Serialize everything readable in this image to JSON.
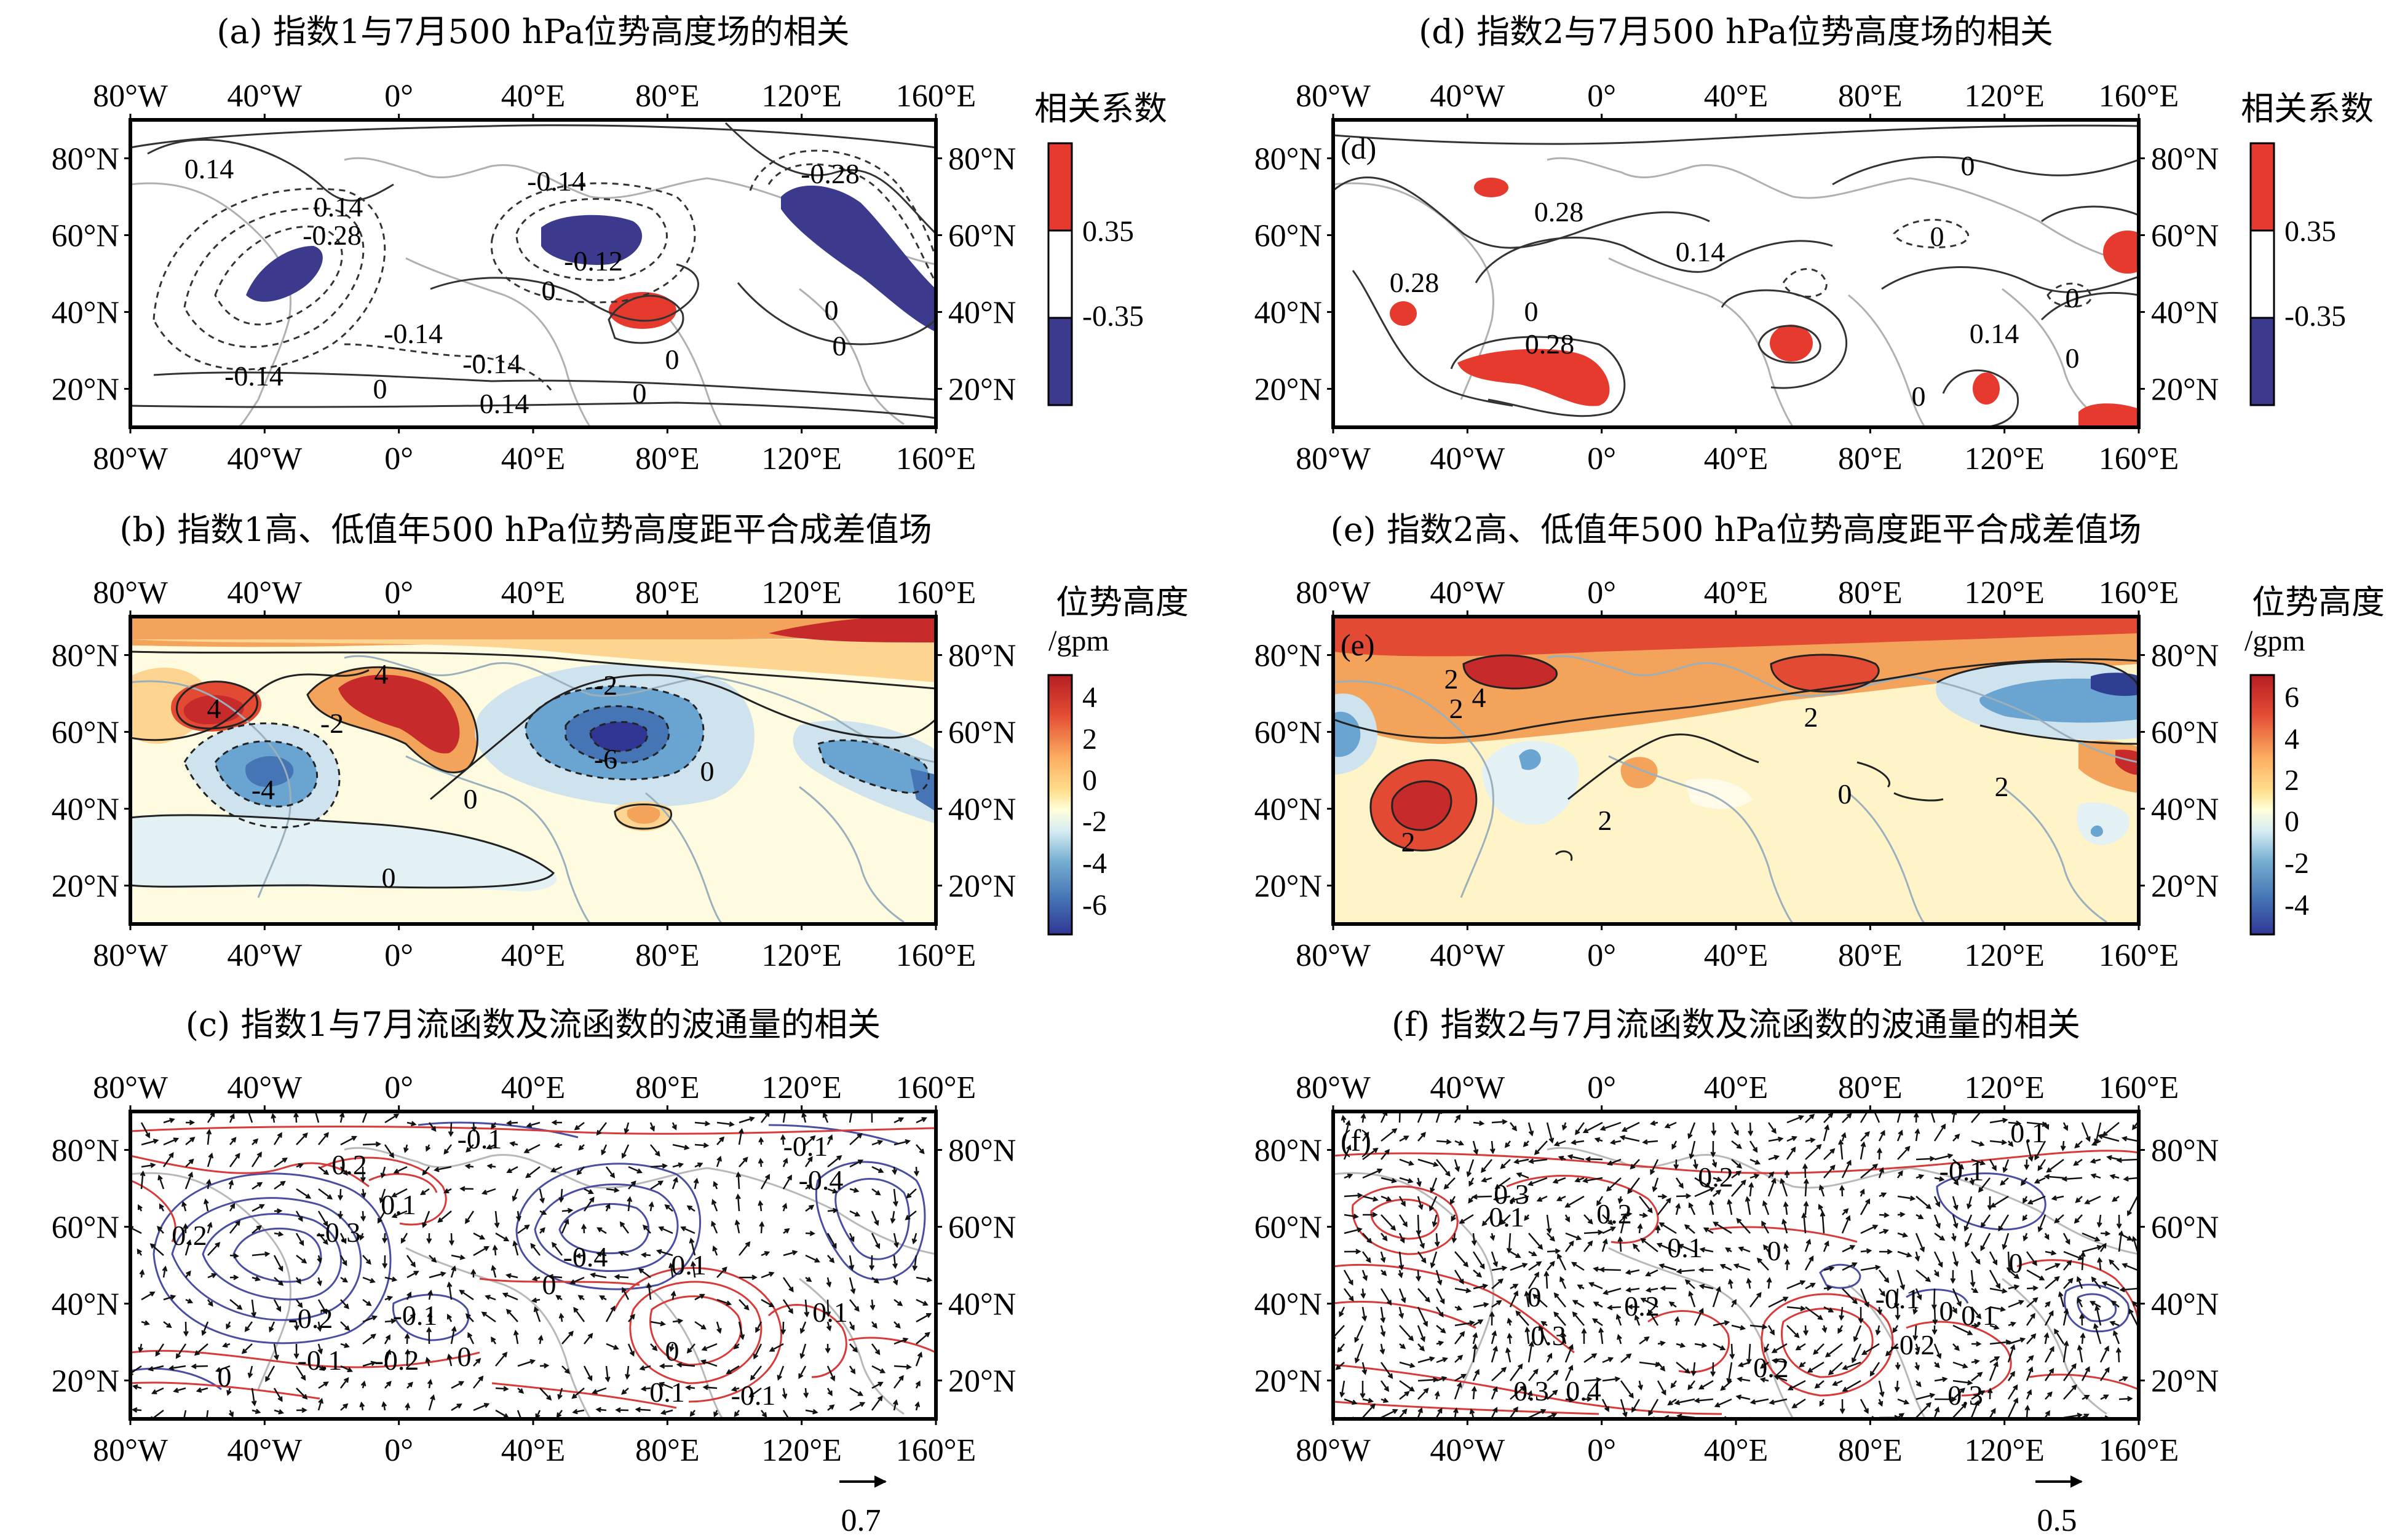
{
  "axes": {
    "lon_ticks": [
      "80°W",
      "40°W",
      "0°",
      "40°E",
      "80°E",
      "120°E",
      "160°E"
    ],
    "lat_ticks": [
      "80°N",
      "60°N",
      "40°N",
      "20°N"
    ]
  },
  "panels": {
    "a": {
      "title": "(a) 指数1与7月500 hPa位势高度场的相关",
      "contour_labels": [
        "0.14",
        "0.14",
        "-0.28",
        "-0.14",
        "-0.28",
        "-0.12",
        "0",
        "-0.14",
        "0",
        "-0.14",
        "-0.14",
        "0",
        "0.14",
        "0",
        "0",
        "0"
      ]
    },
    "b": {
      "title": "(b) 指数1高、低值年500 hPa位势高度距平合成差值场",
      "contour_labels": [
        "4",
        "4",
        "-2",
        "-4",
        "-2",
        "-6",
        "0",
        "0",
        "0"
      ]
    },
    "c": {
      "title": "(c) 指数1与7月流函数及流函数的波通量的相关",
      "contour_labels": [
        "-0.1",
        "-0.1",
        "0.2",
        "0.2",
        "-0.3",
        "0.1",
        "-0.4",
        "-0.4",
        "0.1",
        "0",
        "-0.2",
        "-0.1",
        "0.1",
        "-0.1",
        "-0.2",
        "0",
        "0",
        "0",
        "0.1",
        "-0.1"
      ],
      "ref_vector": "0.7"
    },
    "d": {
      "title": "(d) 指数2与7月500 hPa位势高度场的相关",
      "panel_label": "(d)",
      "contour_labels": [
        "0.28",
        "0",
        "0",
        "0.14",
        "0.28",
        "0",
        "0.28",
        "0",
        "0.14",
        "0",
        "0"
      ]
    },
    "e": {
      "title": "(e) 指数2高、低值年500 hPa位势高度距平合成差值场",
      "panel_label": "(e)",
      "contour_labels": [
        "2",
        "4",
        "2",
        "2",
        "0",
        "2",
        "2",
        "2"
      ]
    },
    "f": {
      "title": "(f) 指数2与7月流函数及流函数的波通量的相关",
      "panel_label": "(f)",
      "contour_labels": [
        "0.1",
        "-0.1",
        "0.2",
        "0.3",
        "0.1",
        "0.2",
        "0.1",
        "0",
        "0",
        "0",
        "-0.1",
        "0",
        "0.1",
        "0.2",
        "0.3",
        "0.2",
        "-0.2",
        "0.3",
        "0.4",
        "0.3"
      ],
      "ref_vector": "0.5"
    }
  },
  "colorbars": {
    "corr": {
      "title": "相关系数",
      "ticks": [
        "0.35",
        "-0.35"
      ],
      "colors": [
        "#e63a2e",
        "#ffffff",
        "#3c3a8c"
      ]
    },
    "height_left": {
      "title_line1": "位势高度",
      "title_line2": "/gpm",
      "ticks": [
        "4",
        "2",
        "0",
        "-2",
        "-4",
        "-6"
      ]
    },
    "height_right": {
      "title_line1": "位势高度",
      "title_line2": "/gpm",
      "ticks": [
        "6",
        "4",
        "2",
        "0",
        "-2",
        "-4"
      ]
    }
  },
  "colors": {
    "positive_strong": "#c62a2a",
    "positive": "#f0a05a",
    "positive_weak": "#fbe6a6",
    "neutral": "#fffbe8",
    "negative_weak": "#cfe3ee",
    "negative": "#6aa4d0",
    "negative_strong": "#2e3f92",
    "shaded_pos": "#e63a2e",
    "shaded_neg": "#3c3a8c",
    "stream_pos": "#d83a3a",
    "stream_neg": "#4a4ea0",
    "coast": "#b0b0b0"
  }
}
